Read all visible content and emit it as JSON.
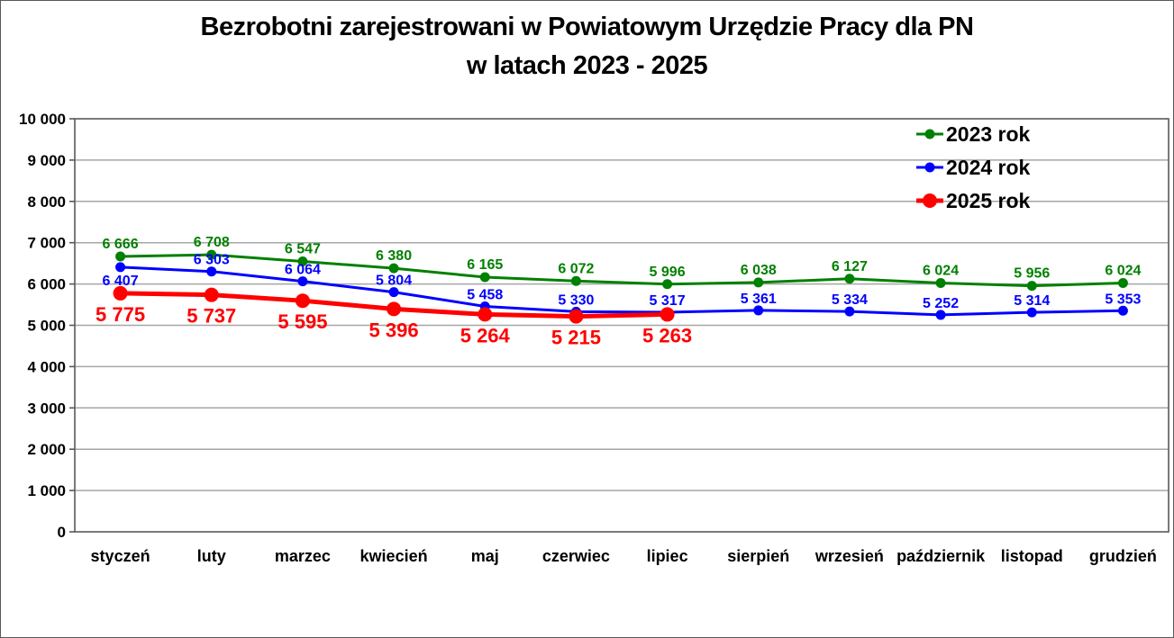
{
  "title": {
    "line1": "Bezrobotni zarejestrowani w Powiatowym Urzędzie Pracy dla PN",
    "line2": "w latach 2023 - 2025"
  },
  "chart_data": {
    "type": "line",
    "categories": [
      "styczeń",
      "luty",
      "marzec",
      "kwiecień",
      "maj",
      "czerwiec",
      "lipiec",
      "sierpień",
      "wrzesień",
      "październik",
      "listopad",
      "grudzień"
    ],
    "series": [
      {
        "name": "2023 rok",
        "color": "#008000",
        "line_width": 3,
        "marker_radius": 5.5,
        "label_font_size": 16,
        "label_offset": -9,
        "values": [
          6666,
          6708,
          6547,
          6380,
          6165,
          6072,
          5996,
          6038,
          6127,
          6024,
          5956,
          6024
        ]
      },
      {
        "name": "2024 rok",
        "color": "#0000FF",
        "line_width": 3,
        "marker_radius": 5.5,
        "label_font_size": 16,
        "label_offset": -8,
        "label_offset_first": 20,
        "values": [
          6407,
          6303,
          6064,
          5804,
          5458,
          5330,
          5317,
          5361,
          5334,
          5252,
          5314,
          5353
        ]
      },
      {
        "name": "2025 rok",
        "color": "#FF0000",
        "line_width": 5,
        "marker_radius": 8,
        "label_font_size": 22,
        "label_offset": 31,
        "values": [
          5775,
          5737,
          5595,
          5396,
          5264,
          5215,
          5263
        ]
      }
    ],
    "ylim": [
      0,
      10000
    ],
    "ytick_step": 1000,
    "ytick_labels": [
      "0",
      "1 000",
      "2 000",
      "3 000",
      "4 000",
      "5 000",
      "6 000",
      "7 000",
      "8 000",
      "9 000",
      "10 000"
    ],
    "xlabel": "",
    "ylabel": "",
    "grid": true,
    "legend": {
      "position": "top-right"
    },
    "number_format": "space-thousands"
  },
  "colors": {
    "grid": "#A6A6A6",
    "axis": "#595959",
    "text": "#000000",
    "background": "#FFFFFF"
  }
}
